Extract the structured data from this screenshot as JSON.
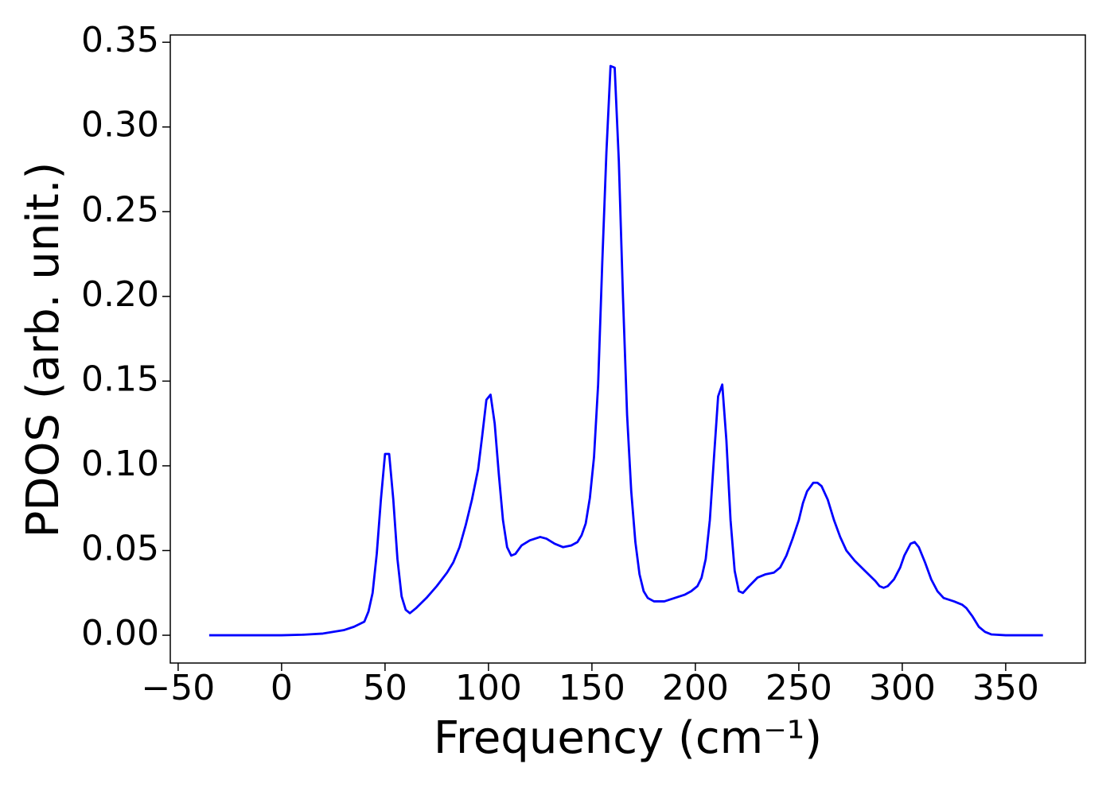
{
  "chart_data": {
    "type": "line",
    "x_label": "Frequency (cm⁻¹)",
    "y_label": "PDOS (arb. unit.)",
    "xlim": [
      -53.8,
      388.5
    ],
    "ylim": [
      -0.0164,
      0.3543
    ],
    "xticks": [
      {
        "value": -50,
        "label": "−50"
      },
      0,
      50,
      100,
      150,
      200,
      250,
      300,
      350
    ],
    "yticks": [
      {
        "value": 0,
        "label": "0.00"
      },
      {
        "value": 0.05,
        "label": "0.05"
      },
      {
        "value": 0.1,
        "label": "0.10"
      },
      {
        "value": 0.15,
        "label": "0.15"
      },
      {
        "value": 0.2,
        "label": "0.20"
      },
      {
        "value": 0.25,
        "label": "0.25"
      },
      {
        "value": 0.3,
        "label": "0.30"
      },
      {
        "value": 0.35,
        "label": "0.35"
      }
    ],
    "grid": false,
    "x": [
      -35,
      0,
      10,
      20,
      30,
      35,
      40,
      42,
      44,
      46,
      48,
      50,
      52,
      54,
      56,
      58,
      60,
      62,
      65,
      70,
      75,
      80,
      83,
      86,
      89,
      92,
      95,
      97,
      99,
      101,
      103,
      105,
      107,
      109,
      111,
      113,
      116,
      120,
      125,
      128,
      132,
      136,
      140,
      143,
      145,
      147,
      149,
      151,
      153,
      155,
      157,
      159,
      161,
      163,
      165,
      167,
      169,
      171,
      173,
      175,
      177,
      180,
      185,
      190,
      195,
      198,
      201,
      203,
      205,
      207,
      209,
      211,
      213,
      215,
      217,
      219,
      221,
      223,
      226,
      230,
      234,
      238,
      241,
      244,
      247,
      250,
      252,
      254,
      257,
      259,
      261,
      264,
      267,
      270,
      273,
      277,
      282,
      287,
      289,
      291,
      293,
      296,
      299,
      301,
      304,
      306,
      308,
      311,
      314,
      317,
      320,
      325,
      329,
      331,
      334,
      337,
      340,
      343,
      350,
      368
    ],
    "series": [
      {
        "color": "#0000ff",
        "values": [
          0,
          0,
          0.0003,
          0.001,
          0.003,
          0.005,
          0.008,
          0.014,
          0.025,
          0.048,
          0.08,
          0.107,
          0.107,
          0.08,
          0.045,
          0.023,
          0.015,
          0.013,
          0.016,
          0.022,
          0.029,
          0.037,
          0.043,
          0.052,
          0.065,
          0.08,
          0.098,
          0.118,
          0.139,
          0.142,
          0.125,
          0.095,
          0.068,
          0.052,
          0.047,
          0.048,
          0.053,
          0.056,
          0.058,
          0.057,
          0.054,
          0.052,
          0.053,
          0.055,
          0.059,
          0.066,
          0.081,
          0.105,
          0.148,
          0.22,
          0.285,
          0.336,
          0.335,
          0.28,
          0.2,
          0.13,
          0.085,
          0.055,
          0.036,
          0.026,
          0.022,
          0.02,
          0.02,
          0.022,
          0.024,
          0.026,
          0.029,
          0.034,
          0.045,
          0.068,
          0.105,
          0.141,
          0.148,
          0.115,
          0.068,
          0.038,
          0.026,
          0.025,
          0.029,
          0.034,
          0.036,
          0.037,
          0.04,
          0.047,
          0.057,
          0.068,
          0.078,
          0.085,
          0.09,
          0.09,
          0.088,
          0.08,
          0.068,
          0.058,
          0.05,
          0.044,
          0.038,
          0.032,
          0.029,
          0.028,
          0.029,
          0.033,
          0.04,
          0.047,
          0.054,
          0.055,
          0.052,
          0.043,
          0.033,
          0.026,
          0.022,
          0.02,
          0.018,
          0.016,
          0.011,
          0.005,
          0.002,
          0.0005,
          0,
          0
        ]
      }
    ]
  }
}
